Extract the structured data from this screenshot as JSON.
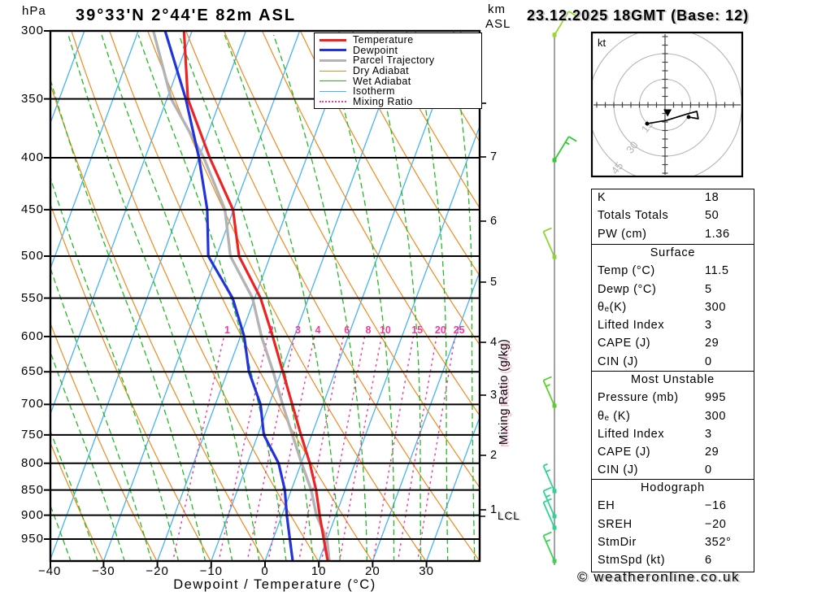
{
  "header": {
    "pressure_unit": "hPa",
    "title": "39°33'N 2°44'E 82m ASL",
    "km_unit": "km",
    "asl_unit": "ASL",
    "datetime": "23.12.2025 18GMT (Base: 12)",
    "copyright": "© weatheronline.co.uk"
  },
  "legend": [
    {
      "label": "Temperature",
      "color": "#ee2222",
      "thick": 3.4,
      "style": "solid"
    },
    {
      "label": "Dewpoint",
      "color": "#2233dd",
      "thick": 3.4,
      "style": "solid"
    },
    {
      "label": "Parcel Trajectory",
      "color": "#b3b3b3",
      "thick": 3.4,
      "style": "solid"
    },
    {
      "label": "Dry Adiabat",
      "color": "#ef8a20",
      "thick": 1.6,
      "style": "solid"
    },
    {
      "label": "Wet Adiabat",
      "color": "#22bb22",
      "thick": 1.6,
      "style": "solid"
    },
    {
      "label": "Isotherm",
      "color": "#44b4f4",
      "thick": 1.6,
      "style": "solid"
    },
    {
      "label": "Mixing Ratio",
      "color": "#f43a9a",
      "thick": 2.6,
      "style": "dotted"
    }
  ],
  "chart_data": {
    "type": "line",
    "variant": "skewT-logP sounding",
    "title": "39°33'N 2°44'E 82m ASL",
    "xlabel": "Dewpoint / Temperature (°C)",
    "ylabel": "hPa",
    "y_scale": "log",
    "x_ticks": [
      -40,
      -30,
      -20,
      -10,
      0,
      10,
      20,
      30
    ],
    "pressure_ticks": [
      300,
      350,
      400,
      450,
      500,
      550,
      600,
      650,
      700,
      750,
      800,
      850,
      900,
      950
    ],
    "pressure_levels": [
      300,
      350,
      400,
      450,
      500,
      550,
      600,
      650,
      700,
      750,
      800,
      850,
      900,
      950,
      995
    ],
    "series": [
      {
        "name": "Temperature",
        "color": "#ee2222",
        "values": [
          -51.5,
          -46.1,
          -38.0,
          -30.1,
          -25.8,
          -18.9,
          -14.0,
          -9.7,
          -5.7,
          -2.0,
          1.6,
          4.6,
          7.0,
          9.4,
          11.5
        ]
      },
      {
        "name": "Dewpoint",
        "color": "#2233dd",
        "values": [
          -55.0,
          -46.5,
          -40.0,
          -34.9,
          -31.5,
          -24.1,
          -19.3,
          -16.0,
          -11.6,
          -8.9,
          -4.2,
          -1.2,
          0.9,
          3.1,
          5.0
        ]
      },
      {
        "name": "Parcel Trajectory",
        "color": "#b3b3b3",
        "values": [
          -57.2,
          -49.2,
          -39.1,
          -31.6,
          -27.4,
          -20.4,
          -16.1,
          -11.5,
          -7.5,
          -3.6,
          0.1,
          3.7,
          6.4,
          10.0,
          11.8
        ]
      }
    ],
    "mixing_ratio_values": [
      1,
      2,
      3,
      4,
      6,
      8,
      10,
      15,
      20,
      25
    ],
    "mixing_ratio_axis_label": "Mixing Ratio (g/kg)",
    "km_axis_labels": [
      "",
      "7",
      "6",
      "5",
      "4",
      "3",
      "2",
      "1"
    ],
    "lcl_label": "LCL"
  },
  "hodograph": {
    "unit_label": "kt",
    "ring_labels": [
      "15",
      "30",
      "45"
    ],
    "ring_values_kt": [
      15,
      30,
      45
    ],
    "trace_kt": [
      [
        -10.5,
        -11.0
      ],
      [
        1.0,
        -9.0
      ],
      [
        13.3,
        -5.2
      ],
      [
        18.6,
        -3.8
      ],
      [
        19.5,
        -8.1
      ],
      [
        13.8,
        -7.1
      ]
    ],
    "marker_dots_kt": [
      [
        -10.5,
        -11.0
      ],
      [
        13.8,
        -7.1
      ]
    ],
    "storm_marker_kt": [
      1.5,
      -4.5
    ]
  },
  "tables": [
    {
      "header": "",
      "rows": [
        [
          "K",
          "18"
        ],
        [
          "Totals Totals",
          "50"
        ],
        [
          "PW (cm)",
          "1.36"
        ]
      ]
    },
    {
      "header": "Surface",
      "rows": [
        [
          "Temp (°C)",
          "11.5"
        ],
        [
          "Dewp (°C)",
          "5"
        ],
        [
          "θₑ(K)",
          "300"
        ],
        [
          "Lifted Index",
          "3"
        ],
        [
          "CAPE (J)",
          "29"
        ],
        [
          "CIN (J)",
          "0"
        ]
      ]
    },
    {
      "header": "Most Unstable",
      "rows": [
        [
          "Pressure (mb)",
          "995"
        ],
        [
          "θₑ (K)",
          "300"
        ],
        [
          "Lifted Index",
          "3"
        ],
        [
          "CAPE (J)",
          "29"
        ],
        [
          "CIN (J)",
          "0"
        ]
      ]
    },
    {
      "header": "Hodograph",
      "rows": [
        [
          "EH",
          "−16"
        ],
        [
          "SREH",
          "−20"
        ],
        [
          "StmDir",
          "352°"
        ],
        [
          "StmSpd (kt)",
          "6"
        ]
      ]
    }
  ],
  "winds": [
    {
      "y": 43,
      "color": "#96dc28",
      "dir": "NE",
      "feathers": [
        1
      ]
    },
    {
      "y": 197,
      "color": "#2ecc2e",
      "dir": "NE",
      "feathers": [
        1,
        0.5
      ]
    },
    {
      "y": 316,
      "color": "#8ed631",
      "dir": "NW",
      "feathers": [
        1
      ]
    },
    {
      "y": 499,
      "color": "#5ad12d",
      "dir": "NW",
      "feathers": [
        1,
        0.5
      ]
    },
    {
      "y": 604,
      "color": "#2fd393",
      "dir": "NW",
      "feathers": [
        0.5,
        0.5
      ]
    },
    {
      "y": 635,
      "color": "#2fd393",
      "dir": "NW",
      "feathers": [
        1,
        0.5
      ]
    },
    {
      "y": 649,
      "color": "#2fd393",
      "dir": "NW",
      "feathers": [
        1
      ]
    },
    {
      "y": 690,
      "color": "#3ad54f",
      "dir": "NW",
      "feathers": [
        1,
        0.5
      ]
    }
  ]
}
